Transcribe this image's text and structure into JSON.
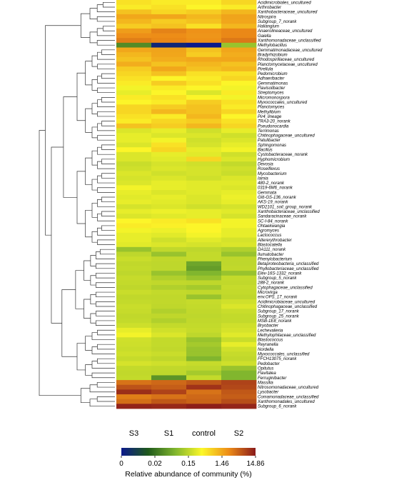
{
  "chart_data": {
    "type": "heatmap",
    "columns": [
      "S3",
      "S1",
      "control",
      "S2"
    ],
    "rows": [
      "Acidimicrobiales_uncultured",
      "Arthrobacter",
      "Xanthobacteraceae_uncultured",
      "Nitrospira",
      "Subgroup_7_norank",
      "Haliangium",
      "Anaerolineaceae_uncultured",
      "Gaiella",
      "Xanthomonadaceae_unclassified",
      "Methylobacillus",
      "Gemmatimonadaceae_uncultured",
      "Bradyrhizobium",
      "Rhodospirillaceae_uncultured",
      "Planctomycetaceae_uncultured",
      "Pirellula",
      "Pedomicrobium",
      "Adhaeribacter",
      "Gemmatimonas",
      "Flavisolibacter",
      "Streptomyces",
      "Micromonospora",
      "Myxococcales_uncultured",
      "Planctomyces",
      "Methylibium",
      "Pir4_lineage",
      "TRA3-20_norank",
      "Pseudonocardia",
      "Terrimonas",
      "Chitinophagaceae_uncultured",
      "Patulibacter",
      "Sphingomonas",
      "Bacillus",
      "Cystobacteraceae_norank",
      "Hyphomicrobium",
      "Devosia",
      "Roseiflexus",
      "Mycobacterium",
      "Iamia",
      "480-2_norank",
      "0319-6M6_norank",
      "Gemmata",
      "Gitt-GS-136_norank",
      "AKS-19_norank",
      "WD2101_soil_group_norank",
      "Xanthobacteraceae_unclassified",
      "Sandaracinaceae_norank",
      "SC-I-84_norank",
      "Ohtaekwangia",
      "Agromyces",
      "Lactococcus",
      "Altererythrobacter",
      "Blastocatella",
      "DA111_norank",
      "Ilumatobacter",
      "Phenylobacterium",
      "Betaproteobacteria_unclassified",
      "Phyllobacteriaceae_unclassified",
      "Elev-16S-1332_norank",
      "Subgroup_5_norank",
      "288-2_norank",
      "Cytophagaceae_unclassified",
      "Microvirga",
      "env.OPS_17_norank",
      "Acidimicrobiaceae_uncultured",
      "Chitinophagaceae_unclassified",
      "Subgroup_17_norank",
      "Subgroup_25_norank",
      "MSB-1E8_norank",
      "Bryobacter",
      "Lechevalieria",
      "Methylophilaceae_unclassified",
      "Blastococcus",
      "Reyranella",
      "Nordella",
      "Myxococcales_unclassified",
      "FFCH13075_norank",
      "Pedobacter",
      "Opitutus",
      "Flavitalea",
      "Ferruginibacter",
      "Massilia",
      "Nitrosomonadaceae_uncultured",
      "Lysobacter",
      "Comamonadaceae_unclassified",
      "Xanthomonadales_uncultured",
      "Subgroup_6_norank"
    ],
    "values": [
      [
        0.9,
        0.8,
        0.8,
        1.0
      ],
      [
        0.8,
        0.9,
        0.7,
        0.8
      ],
      [
        1.2,
        1.0,
        1.1,
        1.3
      ],
      [
        1.5,
        1.6,
        1.3,
        1.8
      ],
      [
        1.3,
        1.1,
        1.2,
        1.6
      ],
      [
        1.1,
        1.2,
        0.9,
        1.3
      ],
      [
        2.5,
        5.0,
        3.5,
        4.5
      ],
      [
        3.8,
        4.0,
        3.2,
        4.5
      ],
      [
        5.5,
        4.5,
        3.6,
        6.0
      ],
      [
        0.05,
        0.003,
        0.0,
        0.12
      ],
      [
        1.5,
        1.8,
        1.2,
        1.6
      ],
      [
        1.3,
        1.6,
        1.1,
        1.4
      ],
      [
        1.2,
        1.4,
        1.5,
        1.6
      ],
      [
        1.4,
        1.2,
        1.3,
        1.2
      ],
      [
        1.1,
        1.5,
        1.2,
        1.3
      ],
      [
        1.0,
        1.2,
        0.9,
        0.9
      ],
      [
        0.9,
        0.7,
        0.8,
        1.0
      ],
      [
        0.8,
        1.1,
        0.9,
        0.7
      ],
      [
        0.6,
        0.8,
        0.7,
        0.6
      ],
      [
        0.5,
        0.7,
        0.4,
        0.8
      ],
      [
        0.8,
        0.9,
        0.7,
        0.6
      ],
      [
        0.7,
        0.8,
        1.1,
        0.9
      ],
      [
        1.0,
        1.1,
        1.2,
        0.8
      ],
      [
        1.0,
        1.3,
        1.2,
        1.0
      ],
      [
        0.9,
        0.8,
        1.3,
        0.7
      ],
      [
        0.8,
        1.0,
        1.1,
        0.9
      ],
      [
        1.2,
        1.1,
        1.3,
        1.0
      ],
      [
        0.4,
        0.5,
        0.3,
        0.5
      ],
      [
        0.5,
        0.4,
        0.4,
        0.3
      ],
      [
        0.5,
        0.6,
        0.3,
        0.4
      ],
      [
        0.4,
        0.9,
        0.35,
        0.5
      ],
      [
        0.7,
        1.0,
        0.5,
        0.6
      ],
      [
        0.4,
        0.5,
        0.45,
        0.3
      ],
      [
        0.4,
        0.45,
        1.0,
        0.4
      ],
      [
        0.25,
        0.35,
        0.3,
        0.2
      ],
      [
        0.3,
        0.4,
        0.35,
        0.3
      ],
      [
        0.4,
        0.3,
        0.35,
        0.25
      ],
      [
        0.35,
        0.4,
        0.3,
        0.4
      ],
      [
        0.4,
        0.5,
        0.45,
        0.45
      ],
      [
        0.6,
        0.5,
        0.45,
        0.4
      ],
      [
        0.5,
        0.4,
        0.45,
        0.5
      ],
      [
        0.45,
        0.5,
        0.4,
        0.55
      ],
      [
        0.5,
        0.45,
        0.4,
        0.5
      ],
      [
        0.35,
        0.4,
        0.3,
        0.35
      ],
      [
        0.5,
        0.55,
        0.5,
        0.45
      ],
      [
        0.4,
        0.45,
        0.5,
        0.35
      ],
      [
        0.7,
        0.8,
        0.9,
        0.6
      ],
      [
        0.8,
        0.75,
        0.7,
        0.6
      ],
      [
        0.6,
        0.55,
        0.7,
        0.5
      ],
      [
        0.5,
        0.45,
        0.6,
        0.5
      ],
      [
        0.5,
        0.3,
        0.45,
        0.35
      ],
      [
        0.45,
        0.4,
        0.35,
        0.4
      ],
      [
        0.12,
        0.18,
        0.15,
        0.14
      ],
      [
        0.15,
        0.12,
        0.2,
        0.12
      ],
      [
        0.25,
        0.18,
        0.2,
        0.16
      ],
      [
        0.18,
        0.15,
        0.08,
        0.15
      ],
      [
        0.2,
        0.15,
        0.07,
        0.18
      ],
      [
        0.15,
        0.12,
        0.1,
        0.12
      ],
      [
        0.22,
        0.14,
        0.12,
        0.2
      ],
      [
        0.2,
        0.18,
        0.16,
        0.18
      ],
      [
        0.16,
        0.14,
        0.13,
        0.22
      ],
      [
        0.25,
        0.2,
        0.18,
        0.2
      ],
      [
        0.18,
        0.17,
        0.12,
        0.16
      ],
      [
        0.2,
        0.18,
        0.22,
        0.3
      ],
      [
        0.25,
        0.16,
        0.2,
        0.4
      ],
      [
        0.22,
        0.14,
        0.18,
        0.25
      ],
      [
        0.18,
        0.16,
        0.15,
        0.2
      ],
      [
        0.2,
        0.14,
        0.18,
        0.2
      ],
      [
        0.28,
        0.2,
        0.2,
        0.3
      ],
      [
        0.5,
        0.3,
        0.22,
        0.35
      ],
      [
        0.6,
        0.4,
        0.15,
        0.45
      ],
      [
        0.3,
        0.2,
        0.12,
        0.25
      ],
      [
        0.28,
        0.2,
        0.13,
        0.5
      ],
      [
        0.25,
        0.18,
        0.12,
        0.3
      ],
      [
        0.3,
        0.25,
        0.12,
        0.22
      ],
      [
        0.22,
        0.16,
        0.1,
        0.18
      ],
      [
        0.35,
        0.3,
        0.22,
        0.3
      ],
      [
        0.2,
        0.18,
        0.15,
        0.12
      ],
      [
        0.18,
        0.15,
        0.13,
        0.1
      ],
      [
        0.2,
        0.06,
        0.2,
        0.1
      ],
      [
        6.5,
        7.5,
        9.0,
        11.0
      ],
      [
        9.5,
        8.5,
        12.5,
        10.5
      ],
      [
        13.0,
        11.0,
        6.5,
        9.0
      ],
      [
        5.5,
        6.5,
        7.5,
        8.5
      ],
      [
        7.0,
        9.0,
        8.0,
        10.0
      ],
      [
        14.0,
        13.5,
        14.5,
        13.8
      ]
    ],
    "color_scale": {
      "ticks": [
        0,
        0.02,
        0.15,
        1.46,
        14.86
      ],
      "colors": [
        "#0c1a8c",
        "#1f5a1c",
        "#7fb52e",
        "#fcf829",
        "#ed8c17",
        "#8a1a1a"
      ]
    },
    "legend_label": "Relative abundance of community (%)",
    "dendrogram": "rows clustered (left side)"
  }
}
